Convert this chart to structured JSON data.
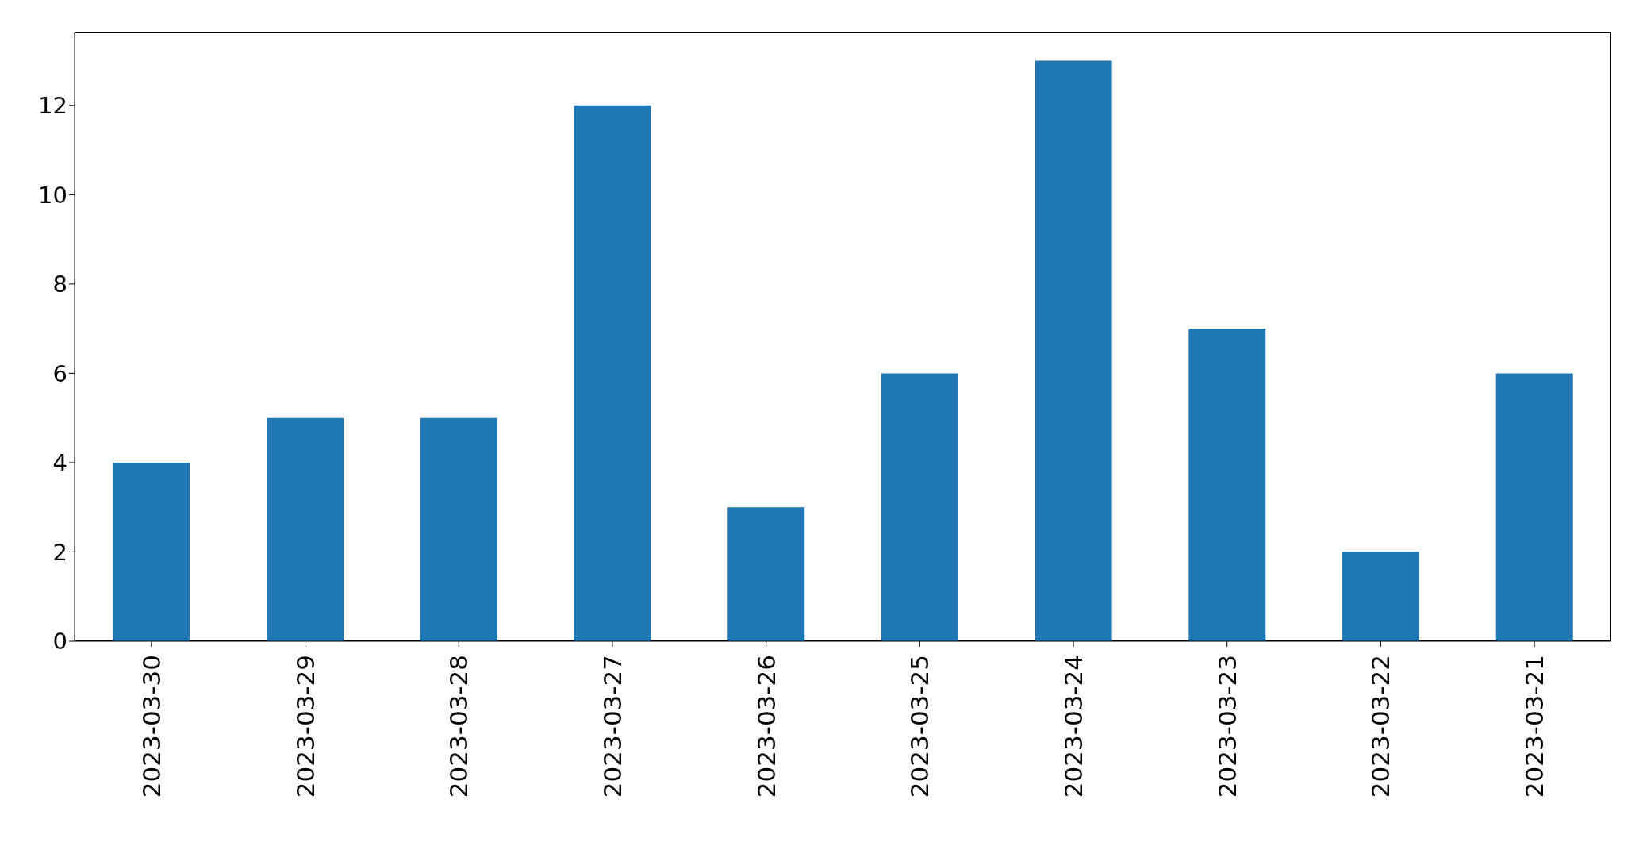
{
  "chart_data": {
    "type": "bar",
    "categories": [
      "2023-03-30",
      "2023-03-29",
      "2023-03-28",
      "2023-03-27",
      "2023-03-26",
      "2023-03-25",
      "2023-03-24",
      "2023-03-23",
      "2023-03-22",
      "2023-03-21"
    ],
    "values": [
      4,
      5,
      5,
      12,
      3,
      6,
      13,
      7,
      2,
      6
    ],
    "color": "#1f77b4",
    "ylim": [
      0,
      13.65
    ],
    "yticks": [
      0,
      2,
      4,
      6,
      8,
      10,
      12
    ],
    "grid": false
  }
}
